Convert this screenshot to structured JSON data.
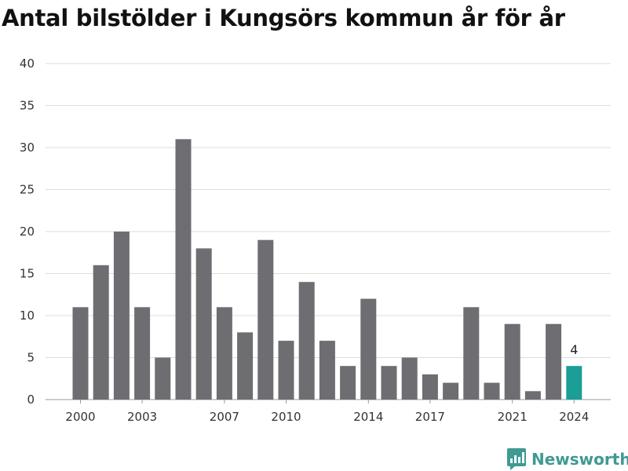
{
  "title": "Antal bilstölder i Kungsörs kommun år för år",
  "brand": {
    "name": "Newsworthy",
    "icon": "newsworthy-logo-icon",
    "color": "#3f9a93"
  },
  "chart_data": {
    "type": "bar",
    "title": "Antal bilstölder i Kungsörs kommun år för år",
    "x": [
      2000,
      2001,
      2002,
      2003,
      2004,
      2005,
      2006,
      2007,
      2008,
      2009,
      2010,
      2011,
      2012,
      2013,
      2014,
      2015,
      2016,
      2017,
      2018,
      2019,
      2020,
      2021,
      2022,
      2023,
      2024
    ],
    "values": [
      11,
      16,
      20,
      11,
      5,
      31,
      18,
      11,
      8,
      19,
      7,
      14,
      7,
      4,
      12,
      4,
      5,
      3,
      2,
      11,
      2,
      9,
      1,
      9,
      4
    ],
    "x_tick_labels": [
      "2000",
      "2003",
      "2007",
      "2010",
      "2014",
      "2017",
      "2021",
      "2024"
    ],
    "y_ticks": [
      0,
      5,
      10,
      15,
      20,
      25,
      30,
      35,
      40
    ],
    "ylim": [
      0,
      40
    ],
    "grid": true,
    "bar_color": "#6d6d72",
    "highlight_color": "#1a9e95",
    "highlight_index": 24,
    "highlight_label": "4"
  }
}
